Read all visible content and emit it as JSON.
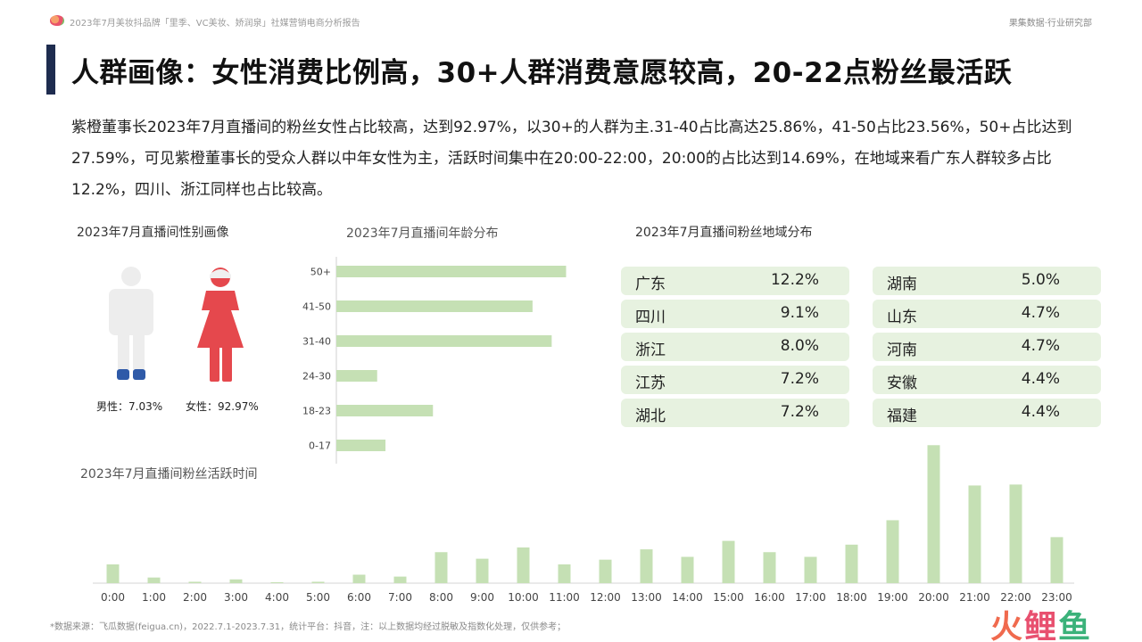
{
  "header": {
    "report_title": "2023年7月美妆抖品牌「里季、VC美妆、娇润泉」社媒营销电商分析报告",
    "brand": "果集数据·行业研究部"
  },
  "page_title": "人群画像：女性消费比例高，30+人群消费意愿较高，20-22点粉丝最活跃",
  "summary": "紫橙董事长2023年7月直播间的粉丝女性占比较高，达到92.97%，以30+的人群为主.31-40占比高达25.86%，41-50占比23.56%，50+占比达到27.59%，可见紫橙董事长的受众人群以中年女性为主，活跃时间集中在20:00-22:00，20:00的占比达到14.69%，在地域来看广东人群较多占比12.2%，四川、浙江同样也占比较高。",
  "gender": {
    "title": "2023年7月直播间性别画像",
    "male_label": "男性：7.03%",
    "female_label": "女性：92.97%",
    "male_share": 7.03,
    "female_share": 92.97,
    "colors": {
      "male_body": "#ededed",
      "male_feet": "#2f5aa8",
      "female": "#e5484d"
    }
  },
  "region": {
    "title": "2023年7月直播间粉丝地域分布",
    "left": [
      {
        "name": "广东",
        "value": "12.2%"
      },
      {
        "name": "四川",
        "value": "9.1%"
      },
      {
        "name": "浙江",
        "value": "8.0%"
      },
      {
        "name": "江苏",
        "value": "7.2%"
      },
      {
        "name": "湖北",
        "value": "7.2%"
      }
    ],
    "right": [
      {
        "name": "湖南",
        "value": "5.0%"
      },
      {
        "name": "山东",
        "value": "4.7%"
      },
      {
        "name": "河南",
        "value": "4.7%"
      },
      {
        "name": "安徽",
        "value": "4.4%"
      },
      {
        "name": "福建",
        "value": "4.4%"
      }
    ]
  },
  "chart_data": [
    {
      "type": "bar",
      "orientation": "horizontal",
      "title": "2023年7月直播间年龄分布",
      "categories": [
        "50+",
        "41-50",
        "31-40",
        "24-30",
        "18-23",
        "0-17"
      ],
      "values": [
        27.59,
        23.56,
        25.86,
        4.9,
        11.6,
        5.9
      ],
      "color": "#c5e0b4",
      "grid": false,
      "xlim": [
        0,
        30
      ]
    },
    {
      "type": "bar",
      "title": "2023年7月直播间粉丝活跃时间",
      "categories": [
        "0:00",
        "1:00",
        "2:00",
        "3:00",
        "4:00",
        "5:00",
        "6:00",
        "7:00",
        "8:00",
        "9:00",
        "10:00",
        "11:00",
        "12:00",
        "13:00",
        "14:00",
        "15:00",
        "16:00",
        "17:00",
        "18:00",
        "19:00",
        "20:00",
        "21:00",
        "22:00",
        "23:00"
      ],
      "values": [
        2.0,
        0.6,
        0.15,
        0.4,
        0.1,
        0.15,
        0.9,
        0.7,
        3.3,
        2.6,
        3.8,
        2.0,
        2.5,
        3.6,
        2.8,
        4.5,
        3.3,
        2.8,
        4.1,
        6.7,
        14.69,
        10.4,
        10.5,
        4.9
      ],
      "color": "#c5e0b4",
      "grid": false,
      "ylim": [
        0,
        15
      ]
    }
  ],
  "footnote": "*数据来源：飞瓜数据(feigua.cn)，2022.7.1-2023.7.31，统计平台：抖音，注：以上数据均经过脱敏及指数化处理，仅供参考；",
  "watermark": {
    "part1": "火",
    "part2": "鲤",
    "part3": "鱼"
  }
}
